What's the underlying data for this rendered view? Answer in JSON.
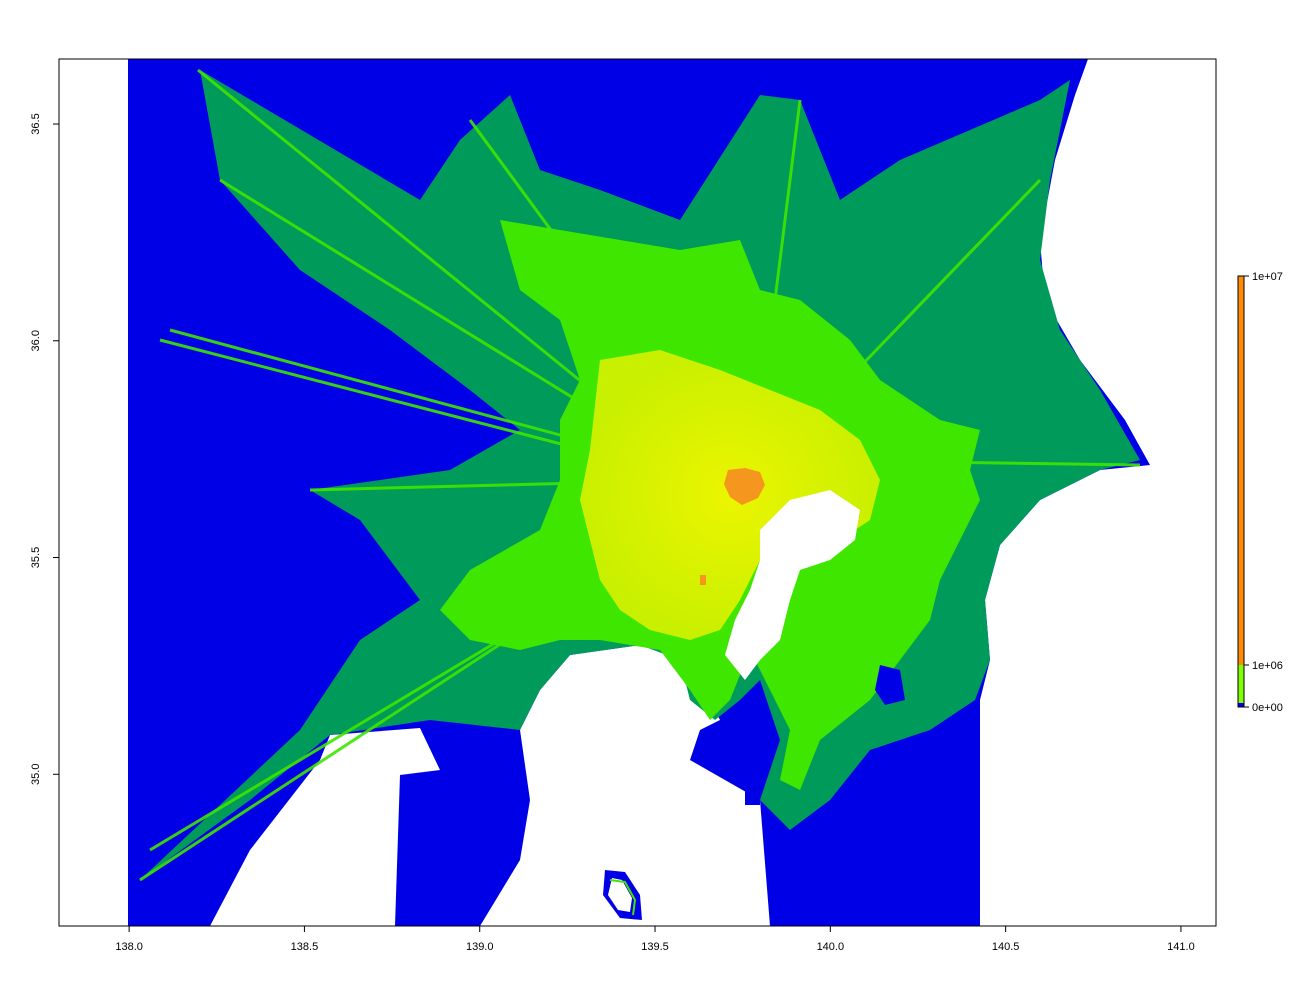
{
  "chart_data": {
    "type": "heatmap",
    "title": "",
    "xlabel": "",
    "ylabel": "",
    "xlim": [
      137.8,
      141.1
    ],
    "ylim": [
      34.65,
      36.65
    ],
    "x_ticks": [
      "138.0",
      "138.5",
      "139.0",
      "139.5",
      "140.0",
      "140.5",
      "141.0"
    ],
    "y_ticks": [
      "35.0",
      "35.5",
      "36.0",
      "36.5"
    ],
    "data_extent": {
      "lon": [
        138.0,
        141.0
      ],
      "lat": [
        34.65,
        36.65
      ]
    },
    "legend": {
      "position": "right",
      "ticks": [
        "0e+00",
        "1e+06",
        "1e+07"
      ],
      "ranges": [
        {
          "from": 0,
          "to": 100000,
          "color": "#0000e6"
        },
        {
          "from": 100000,
          "to": 1000000,
          "color": "#7fff00"
        },
        {
          "from": 1000000,
          "to": 10000000,
          "color": "#ff8c00"
        }
      ]
    },
    "colors": {
      "low": "#0000e6",
      "mid_low": "#009b5a",
      "mid": "#3fe600",
      "mid_high": "#c8f000",
      "high": "#f5961e",
      "water": "#ffffff"
    }
  }
}
